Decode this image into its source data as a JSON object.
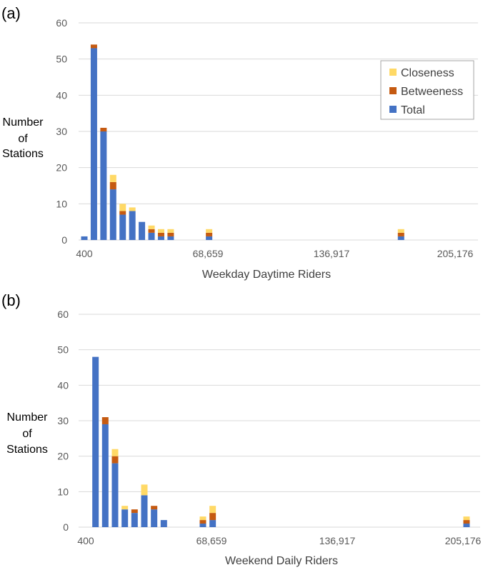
{
  "colors": {
    "total": "#4472C4",
    "betweeness": "#C55A11",
    "closeness": "#FFD966"
  },
  "chart_data": [
    {
      "type": "bar",
      "stacked": true,
      "panel_label": "(a)",
      "xlabel": "Weekday Daytime Riders",
      "ylabel": [
        "Number",
        "of",
        "Stations"
      ],
      "ylim": [
        0,
        60
      ],
      "yticks": [
        "0",
        "10",
        "20",
        "30",
        "40",
        "50",
        "60"
      ],
      "xticks": [
        "400",
        "68,659",
        "136,917",
        "205,176"
      ],
      "grid": true,
      "legend": {
        "placement": "top-right",
        "entries": [
          "Closeness",
          "Betweeness",
          "Total"
        ]
      },
      "bin_x": [
        400,
        5700,
        11000,
        16300,
        21600,
        26900,
        32200,
        37500,
        42800,
        48100,
        53400,
        58700,
        64000,
        69300,
        74600,
        79900,
        85200,
        90500,
        95800,
        101100,
        106400,
        111700,
        117000,
        122300,
        127600,
        132900,
        138200,
        143500,
        148800,
        154100,
        159400,
        164700,
        170000,
        175300,
        180600,
        185900,
        191200,
        196500,
        201800
      ],
      "series": [
        {
          "name": "Total",
          "values": [
            1,
            53,
            30,
            14,
            7,
            8,
            5,
            2,
            1,
            1,
            0,
            0,
            0,
            1,
            0,
            0,
            0,
            0,
            0,
            0,
            0,
            0,
            0,
            0,
            0,
            0,
            0,
            0,
            0,
            0,
            0,
            0,
            0,
            1,
            0,
            0,
            0,
            0,
            0
          ]
        },
        {
          "name": "Betweeness",
          "values": [
            0,
            1,
            1,
            2,
            1,
            0,
            0,
            1,
            1,
            1,
            0,
            0,
            0,
            1,
            0,
            0,
            0,
            0,
            0,
            0,
            0,
            0,
            0,
            0,
            0,
            0,
            0,
            0,
            0,
            0,
            0,
            0,
            0,
            1,
            0,
            0,
            0,
            0,
            0
          ]
        },
        {
          "name": "Closeness",
          "values": [
            0,
            0,
            0,
            2,
            2,
            1,
            0,
            1,
            1,
            1,
            0,
            0,
            0,
            1,
            0,
            0,
            0,
            0,
            0,
            0,
            0,
            0,
            0,
            0,
            0,
            0,
            0,
            0,
            0,
            0,
            0,
            0,
            0,
            1,
            0,
            0,
            0,
            0,
            0
          ]
        }
      ]
    },
    {
      "type": "bar",
      "stacked": true,
      "panel_label": "(b)",
      "xlabel": "Weekend Daily Riders",
      "ylabel": [
        "Number",
        "of",
        "Stations"
      ],
      "ylim": [
        0,
        60
      ],
      "yticks": [
        "0",
        "10",
        "20",
        "30",
        "40",
        "50",
        "60"
      ],
      "xticks": [
        "400",
        "68,659",
        "136,917",
        "205,176"
      ],
      "grid": true,
      "legend": null,
      "bin_x": [
        400,
        5700,
        11000,
        16300,
        21600,
        26900,
        32200,
        37500,
        42800,
        48100,
        53400,
        58700,
        64000,
        69300,
        74600,
        79900,
        85200,
        90500,
        95800,
        101100,
        106400,
        111700,
        117000,
        122300,
        127600,
        132900,
        138200,
        143500,
        148800,
        154100,
        159400,
        164700,
        170000,
        175300,
        180600,
        185900,
        191200,
        196500,
        201800,
        207100
      ],
      "series": [
        {
          "name": "Total",
          "values": [
            0,
            48,
            29,
            18,
            5,
            4,
            9,
            5,
            2,
            0,
            0,
            0,
            1,
            2,
            0,
            0,
            0,
            0,
            0,
            0,
            0,
            0,
            0,
            0,
            0,
            0,
            0,
            0,
            0,
            0,
            0,
            0,
            0,
            0,
            0,
            0,
            0,
            0,
            0,
            1
          ]
        },
        {
          "name": "Betweeness",
          "values": [
            0,
            0,
            2,
            2,
            0,
            1,
            0,
            1,
            0,
            0,
            0,
            0,
            1,
            2,
            0,
            0,
            0,
            0,
            0,
            0,
            0,
            0,
            0,
            0,
            0,
            0,
            0,
            0,
            0,
            0,
            0,
            0,
            0,
            0,
            0,
            0,
            0,
            0,
            0,
            1
          ]
        },
        {
          "name": "Closeness",
          "values": [
            0,
            0,
            0,
            2,
            1,
            0,
            3,
            0,
            0,
            0,
            0,
            0,
            1,
            2,
            0,
            0,
            0,
            0,
            0,
            0,
            0,
            0,
            0,
            0,
            0,
            0,
            0,
            0,
            0,
            0,
            0,
            0,
            0,
            0,
            0,
            0,
            0,
            0,
            0,
            1
          ]
        }
      ]
    }
  ]
}
